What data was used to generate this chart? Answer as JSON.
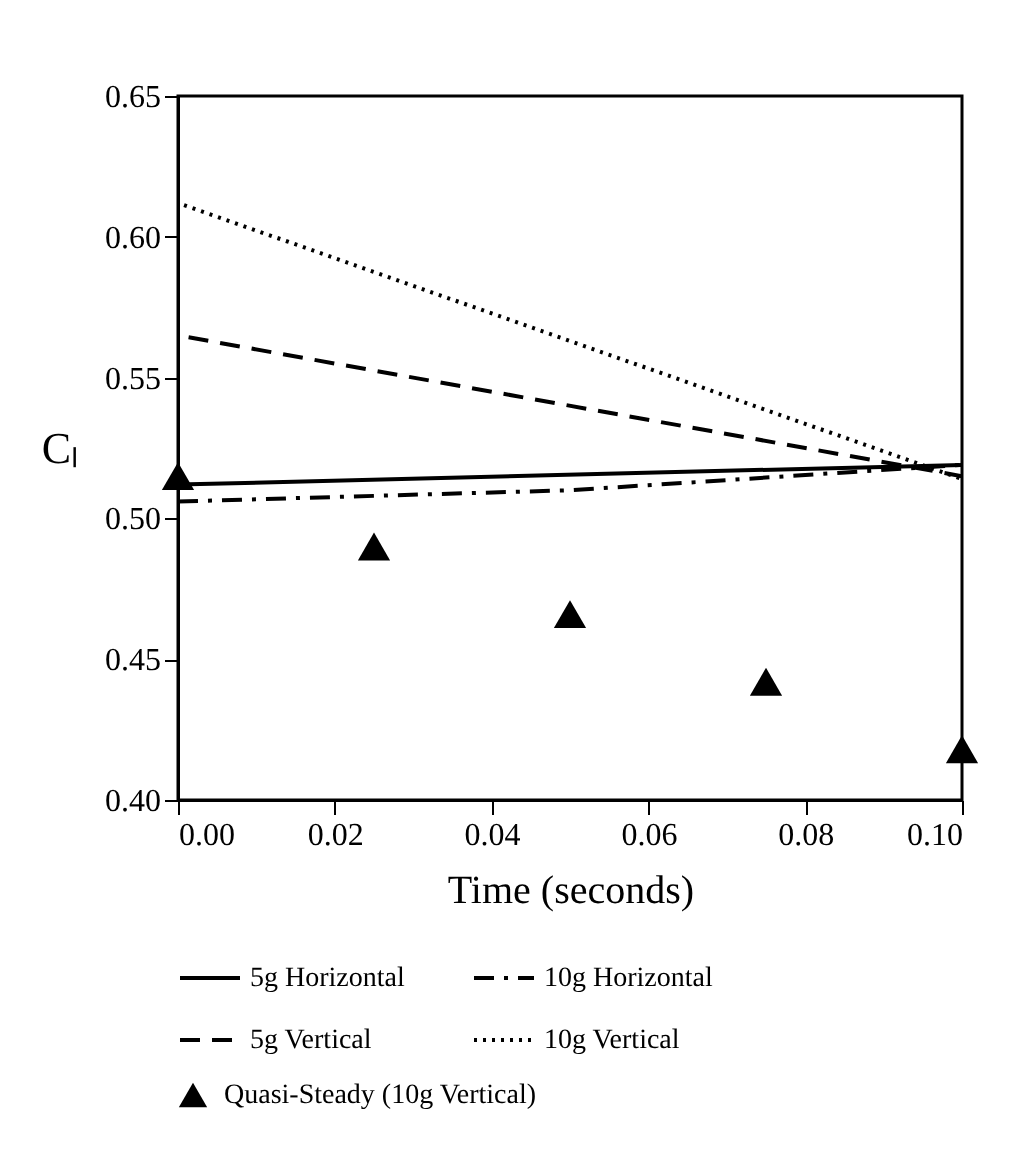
{
  "chart_data": {
    "type": "line",
    "xlabel": "Time (seconds)",
    "ylabel": "Cₗ",
    "xlim": [
      0,
      0.1
    ],
    "ylim": [
      0.4,
      0.65
    ],
    "xticks": [
      {
        "value": 0,
        "label": "0.00"
      },
      {
        "value": 0.02,
        "label": "0.02"
      },
      {
        "value": 0.04,
        "label": "0.04"
      },
      {
        "value": 0.06,
        "label": "0.06"
      },
      {
        "value": 0.08,
        "label": "0.08"
      },
      {
        "value": 0.1,
        "label": "0.10"
      }
    ],
    "yticks": [
      {
        "value": 0.4,
        "label": "0.40"
      },
      {
        "value": 0.45,
        "label": "0.45"
      },
      {
        "value": 0.5,
        "label": "0.50"
      },
      {
        "value": 0.55,
        "label": "0.55"
      },
      {
        "value": 0.6,
        "label": "0.60"
      },
      {
        "value": 0.65,
        "label": "0.65"
      }
    ],
    "grid": false,
    "legend": "bottom",
    "series": [
      {
        "name": "5g Horizontal",
        "color": "#000000",
        "line_style": "solid",
        "x": [
          0,
          0.1
        ],
        "values": [
          0.512,
          0.519
        ]
      },
      {
        "name": "10g Horizontal",
        "color": "#000000",
        "line_style": "dashdot",
        "x": [
          0,
          0.05,
          0.1
        ],
        "values": [
          0.506,
          0.51,
          0.519
        ]
      },
      {
        "name": "5g Vertical",
        "color": "#000000",
        "line_style": "dashed",
        "x": [
          0,
          0,
          0.1
        ],
        "values": [
          0.512,
          0.565,
          0.515
        ]
      },
      {
        "name": "10g Vertical",
        "color": "#000000",
        "line_style": "dotted",
        "x": [
          0,
          0,
          0.1
        ],
        "values": [
          0.512,
          0.612,
          0.514
        ]
      },
      {
        "name": "Quasi-Steady (10g Vertical)",
        "type": "scatter",
        "marker": "triangle",
        "color": "#000000",
        "x": [
          0,
          0.025,
          0.05,
          0.075,
          0.1
        ],
        "values": [
          0.515,
          0.49,
          0.466,
          0.442,
          0.418
        ]
      }
    ]
  }
}
